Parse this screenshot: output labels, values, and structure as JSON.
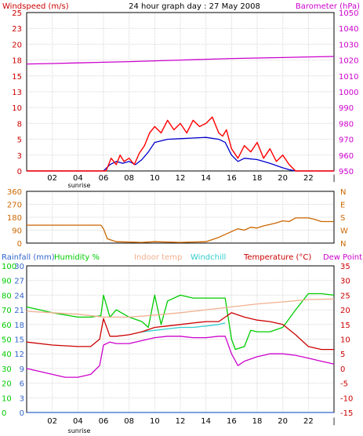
{
  "chart_data": [
    {
      "type": "line",
      "title": "24 hour graph day : 27 May 2008",
      "ylabel_left": "Windspeed (m/s)",
      "ylabel_right": "Barometer (hPa)",
      "x_ticks": [
        "02",
        "04",
        "06",
        "08",
        "10",
        "12",
        "14",
        "16",
        "18",
        "20",
        "22",
        "|"
      ],
      "x_sub_label": "sunrise",
      "ylim": [
        0,
        25
      ],
      "y_ticks": [
        "0",
        "3",
        "5",
        "8",
        "10",
        "13",
        "15",
        "18",
        "20",
        "23",
        "25"
      ],
      "y2lim": [
        950,
        1050
      ],
      "y2_ticks": [
        "950",
        "960",
        "970",
        "980",
        "990",
        "1000",
        "1010",
        "1020",
        "1030",
        "1040",
        "1050"
      ],
      "grid": true,
      "colors": {
        "gust": "#ff0000",
        "wind": "#0000cc",
        "barometer": "#cc00cc"
      },
      "series": [
        {
          "key": "barometer",
          "axis": "right",
          "x": [
            0,
            2,
            4,
            6,
            8,
            10,
            12,
            14,
            16,
            18,
            20,
            22,
            24
          ],
          "values": [
            1017.5,
            1017.8,
            1018.2,
            1018.6,
            1019,
            1019.5,
            1020,
            1020.5,
            1021,
            1021.3,
            1021.6,
            1022,
            1022.3
          ]
        },
        {
          "key": "wind",
          "axis": "left",
          "x": [
            0,
            6,
            6.5,
            7,
            7.5,
            8,
            8.5,
            9,
            9.5,
            10,
            11,
            12,
            13,
            14,
            15,
            15.5,
            16,
            16.5,
            17,
            18,
            19,
            20,
            20.5,
            21,
            24
          ],
          "values": [
            0,
            0,
            1,
            1.5,
            1.2,
            1.5,
            1.0,
            1.8,
            3,
            4.5,
            5.0,
            5.1,
            5.2,
            5.3,
            5.0,
            4.5,
            2.5,
            1.5,
            2.0,
            1.8,
            1.2,
            0.5,
            0.2,
            0,
            0
          ]
        },
        {
          "key": "gust",
          "axis": "left",
          "x": [
            0,
            6.2,
            6.6,
            7,
            7.3,
            7.6,
            8,
            8.4,
            8.8,
            9.2,
            9.6,
            10,
            10.5,
            11,
            11.5,
            12,
            12.5,
            13,
            13.5,
            14,
            14.5,
            15,
            15.3,
            15.6,
            16,
            16.5,
            17,
            17.5,
            18,
            18.5,
            19,
            19.5,
            20,
            20.5,
            21,
            24
          ],
          "values": [
            0,
            0,
            2,
            1,
            2.5,
            1.5,
            2,
            1,
            2.8,
            4,
            6,
            7,
            6,
            8,
            6.5,
            7.5,
            6,
            8,
            7,
            7.5,
            8.5,
            6,
            5.5,
            6.5,
            3.5,
            2,
            4,
            3,
            4.5,
            2,
            3.5,
            1.5,
            2.5,
            1,
            0,
            0
          ]
        }
      ]
    },
    {
      "type": "line",
      "y_ticks": [
        "0",
        "90",
        "180",
        "270",
        "360"
      ],
      "ylim": [
        0,
        360
      ],
      "y2_ticks": [
        "N",
        "W",
        "S",
        "E",
        "N"
      ],
      "grid": true,
      "colors": {
        "direction": "#cc6600"
      },
      "series": [
        {
          "key": "direction",
          "x": [
            0,
            5.8,
            6,
            6.3,
            7,
            9,
            10,
            12,
            14,
            15,
            16,
            16.5,
            17,
            17.5,
            18,
            18.5,
            19,
            19.5,
            20,
            20.5,
            21,
            22,
            22.5,
            23,
            24
          ],
          "values": [
            125,
            125,
            100,
            30,
            10,
            5,
            10,
            5,
            10,
            40,
            80,
            100,
            90,
            110,
            105,
            120,
            130,
            140,
            155,
            150,
            175,
            175,
            165,
            150,
            150
          ]
        }
      ]
    },
    {
      "type": "line",
      "legend": [
        "Rainfall (mm)",
        "Humidity %",
        "Indoor temp",
        "Windchill",
        "Temperature (°C)",
        "Dew Point"
      ],
      "y_ticks_humidity": [
        "0",
        "10",
        "20",
        "30",
        "40",
        "50",
        "60",
        "70",
        "80",
        "90",
        "100"
      ],
      "y_ticks_rain": [
        "0",
        "3",
        "6",
        "9",
        "12",
        "15",
        "18",
        "21",
        "24",
        "27",
        "30"
      ],
      "y_ticks_temp": [
        "-15",
        "-10",
        "-5",
        "0",
        "5",
        "10",
        "15",
        "20",
        "25",
        "30",
        "35"
      ],
      "ylim_temp": [
        -15,
        35
      ],
      "ylim_humidity": [
        0,
        100
      ],
      "grid": true,
      "colors": {
        "rain": "#3366cc",
        "humidity": "#00cc00",
        "indoor": "#f0b090",
        "windchill": "#33cccc",
        "temperature": "#cc0000",
        "dewpoint": "#cc00cc",
        "legend_label": "#333333"
      },
      "series": [
        {
          "key": "rain",
          "axis": "temp",
          "x": [
            0,
            24
          ],
          "values": [
            -15,
            -15
          ]
        },
        {
          "key": "humidity",
          "axis": "humidity",
          "x": [
            0,
            2,
            4,
            5,
            5.8,
            6,
            6.5,
            7,
            8,
            9,
            9.5,
            10,
            10.5,
            11,
            12,
            13,
            14,
            15,
            15.5,
            16,
            16.3,
            17,
            17.5,
            18,
            19,
            20,
            21,
            22,
            23,
            24
          ],
          "values": [
            72,
            68,
            65,
            65,
            66,
            80,
            65,
            70,
            65,
            62,
            58,
            80,
            60,
            76,
            80,
            78,
            78,
            78,
            78,
            50,
            43,
            45,
            56,
            55,
            55,
            58,
            70,
            81,
            81,
            80
          ]
        },
        {
          "key": "indoor",
          "axis": "temp",
          "x": [
            0,
            2,
            4,
            6,
            8,
            10,
            12,
            14,
            16,
            18,
            20,
            22,
            24
          ],
          "values": [
            19.5,
            19,
            18.5,
            17.5,
            17.5,
            18.2,
            19,
            20,
            21,
            22,
            22.7,
            23.5,
            23.7
          ]
        },
        {
          "key": "windchill",
          "axis": "temp",
          "x": [
            9,
            10,
            11,
            12,
            13,
            14,
            15,
            15.5
          ],
          "values": [
            12.5,
            13,
            13.5,
            14,
            14,
            14.5,
            15,
            15.5
          ]
        },
        {
          "key": "temperature",
          "axis": "temp",
          "x": [
            0,
            2,
            4,
            5,
            5.7,
            6,
            6.5,
            7,
            8,
            9,
            10,
            11,
            12,
            13,
            14,
            15,
            15.5,
            16,
            17,
            18,
            19,
            20,
            21,
            22,
            23,
            24
          ],
          "values": [
            9,
            8,
            7.5,
            7.5,
            10,
            17,
            11,
            11,
            11.5,
            12.5,
            14,
            14.5,
            15,
            15.5,
            16,
            16,
            17.5,
            19,
            17.5,
            16.5,
            16,
            15,
            11.5,
            7.5,
            6.5,
            6.5
          ]
        },
        {
          "key": "dewpoint",
          "axis": "temp",
          "x": [
            0,
            2,
            3,
            4,
            5,
            5.7,
            6,
            6.5,
            7,
            8,
            9,
            10,
            11,
            12,
            13,
            14,
            15,
            15.5,
            16,
            16.5,
            17,
            18,
            19,
            20,
            21,
            22,
            23,
            24
          ],
          "values": [
            0,
            -2,
            -3,
            -3,
            -2,
            1,
            8,
            9,
            8.5,
            8.5,
            9.5,
            10.5,
            11,
            11,
            10.5,
            10.5,
            11,
            11,
            5,
            1,
            2.5,
            4,
            5,
            5,
            4.5,
            3.5,
            2.5,
            1.5
          ]
        }
      ]
    }
  ]
}
